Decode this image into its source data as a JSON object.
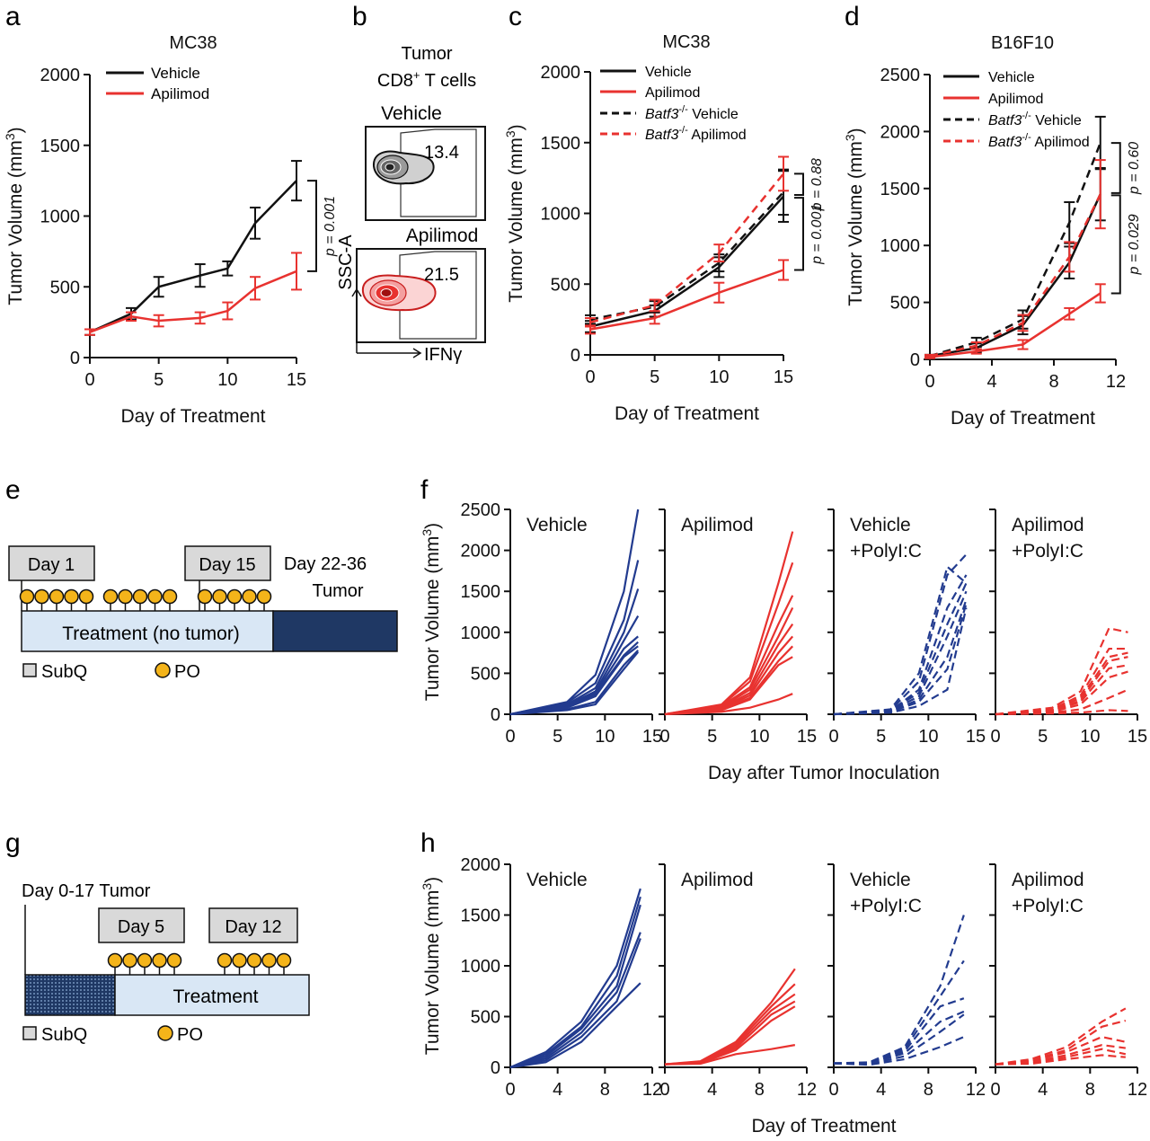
{
  "colors": {
    "black": "#111111",
    "red": "#e8322f",
    "blue": "#223b8f",
    "gold": "#f4b41a",
    "light_blue": "#d9e7f5",
    "navy": "#1f3864",
    "grey_box": "#d9d9d9"
  },
  "panel_letters": {
    "a": "a",
    "b": "b",
    "c": "c",
    "d": "d",
    "e": "e",
    "f": "f",
    "g": "g",
    "h": "h"
  },
  "labels": {
    "tumor_volume_mm3": "Tumor Volume (mm",
    "sup3": "3",
    "close_paren": ")",
    "day_of_treatment": "Day of Treatment",
    "day_after_inoculation": "Day after Tumor Inoculation",
    "vehicle": "Vehicle",
    "apilimod": "Apilimod",
    "batf3": "Batf3",
    "ko_sup": "-/-",
    "vehicle_space": " Vehicle",
    "apilimod_space": " Apilimod"
  },
  "panel_b": {
    "title_line1": "Tumor",
    "title_line2_a": "CD8",
    "title_line2_sup": "+",
    "title_line2_b": " T cells",
    "top_label": "Vehicle",
    "top_pct": "13.4",
    "bottom_label": "Apilimod",
    "bottom_pct": "21.5",
    "y_axis": "SSC-A",
    "x_axis": "IFNγ"
  },
  "panel_e": {
    "day1": "Day 1",
    "day15": "Day 15",
    "tumor_period_line1": "Day 22-36",
    "tumor_period_line2": "Tumor",
    "treatment": "Treatment (no tumor)",
    "subq": "SubQ",
    "po": "PO"
  },
  "panel_g": {
    "tumor_period": "Day 0-17 Tumor",
    "day5": "Day 5",
    "day12": "Day 12",
    "treatment": "Treatment",
    "subq": "SubQ",
    "po": "PO"
  },
  "chart_data": [
    {
      "id": "a",
      "type": "line",
      "title": "MC38",
      "xlabel": "Day of Treatment",
      "ylabel": "Tumor Volume (mm3)",
      "xlim": [
        0,
        15
      ],
      "ylim": [
        0,
        2000
      ],
      "xticks": [
        0,
        5,
        10,
        15
      ],
      "yticks": [
        0,
        500,
        1000,
        1500,
        2000
      ],
      "series": [
        {
          "name": "Vehicle",
          "color": "#111111",
          "dash": false,
          "x": [
            0,
            3,
            5,
            8,
            10,
            12,
            15
          ],
          "y": [
            180,
            310,
            500,
            580,
            630,
            950,
            1250
          ],
          "err": [
            20,
            40,
            70,
            80,
            50,
            110,
            140
          ]
        },
        {
          "name": "Apilimod",
          "color": "#e8322f",
          "dash": false,
          "x": [
            0,
            3,
            5,
            8,
            10,
            12,
            15
          ],
          "y": [
            180,
            290,
            260,
            280,
            330,
            490,
            610
          ],
          "err": [
            20,
            30,
            40,
            40,
            60,
            80,
            130
          ]
        }
      ],
      "annotations": [
        "p = 0.001"
      ]
    },
    {
      "id": "c",
      "type": "line",
      "title": "MC38",
      "xlabel": "Day of Treatment",
      "ylabel": "Tumor Volume (mm3)",
      "xlim": [
        0,
        15
      ],
      "ylim": [
        0,
        2000
      ],
      "xticks": [
        0,
        5,
        10,
        15
      ],
      "yticks": [
        0,
        500,
        1000,
        1500,
        2000
      ],
      "series": [
        {
          "name": "Vehicle",
          "color": "#111111",
          "dash": false,
          "x": [
            0,
            5,
            10,
            15
          ],
          "y": [
            200,
            310,
            620,
            1120
          ],
          "err": [
            40,
            40,
            70,
            180
          ]
        },
        {
          "name": "Apilimod",
          "color": "#e8322f",
          "dash": false,
          "x": [
            0,
            5,
            10,
            15
          ],
          "y": [
            180,
            260,
            440,
            600
          ],
          "err": [
            30,
            40,
            70,
            70
          ]
        },
        {
          "name": "Batf3-/- Vehicle",
          "color": "#111111",
          "dash": true,
          "x": [
            0,
            5,
            10,
            15
          ],
          "y": [
            250,
            340,
            650,
            1150
          ],
          "err": [
            30,
            40,
            60,
            160
          ]
        },
        {
          "name": "Batf3-/- Apilimod",
          "color": "#e8322f",
          "dash": true,
          "x": [
            0,
            5,
            10,
            15
          ],
          "y": [
            230,
            350,
            720,
            1280
          ],
          "err": [
            30,
            40,
            60,
            120
          ]
        }
      ],
      "annotations": [
        "p = 0.88",
        "p = 0.001"
      ]
    },
    {
      "id": "d",
      "type": "line",
      "title": "B16F10",
      "xlabel": "Day of Treatment",
      "ylabel": "Tumor Volume (mm3)",
      "xlim": [
        0,
        12
      ],
      "ylim": [
        0,
        2500
      ],
      "xticks": [
        0,
        4,
        8,
        12
      ],
      "yticks": [
        0,
        500,
        1000,
        1500,
        2000,
        2500
      ],
      "series": [
        {
          "name": "Vehicle",
          "color": "#111111",
          "dash": false,
          "x": [
            0,
            3,
            6,
            9,
            11
          ],
          "y": [
            30,
            100,
            300,
            850,
            1450
          ],
          "err": [
            10,
            40,
            80,
            140,
            230
          ]
        },
        {
          "name": "Apilimod",
          "color": "#e8322f",
          "dash": false,
          "x": [
            0,
            3,
            6,
            9,
            11
          ],
          "y": [
            20,
            70,
            130,
            400,
            580
          ],
          "err": [
            10,
            20,
            40,
            50,
            80
          ]
        },
        {
          "name": "Batf3-/- Vehicle",
          "color": "#111111",
          "dash": true,
          "x": [
            0,
            3,
            6,
            9,
            11
          ],
          "y": [
            30,
            150,
            350,
            1200,
            1900
          ],
          "err": [
            10,
            40,
            80,
            180,
            230
          ]
        },
        {
          "name": "Batf3-/- Apilimod",
          "color": "#e8322f",
          "dash": true,
          "x": [
            0,
            3,
            6,
            9,
            11
          ],
          "y": [
            30,
            120,
            320,
            900,
            1450
          ],
          "err": [
            10,
            30,
            70,
            130,
            300
          ]
        }
      ],
      "annotations": [
        "p = 0.60",
        "p = 0.029"
      ]
    },
    {
      "id": "f",
      "type": "line",
      "group_ylabel": "Tumor Volume (mm3)",
      "group_xlabel": "Day after Tumor Inoculation",
      "xlim": [
        0,
        15
      ],
      "ylim": [
        0,
        2500
      ],
      "xticks": [
        0,
        5,
        10,
        15
      ],
      "yticks": [
        0,
        500,
        1000,
        1500,
        2000,
        2500
      ],
      "panels": [
        {
          "title": [
            "Vehicle"
          ],
          "color": "#223b8f",
          "dash": false,
          "x": [
            0,
            6,
            9,
            12,
            13.5
          ],
          "series": [
            [
              0,
              150,
              480,
              1500,
              2500
            ],
            [
              0,
              140,
              380,
              1150,
              1880
            ],
            [
              0,
              120,
              320,
              1000,
              1530
            ],
            [
              0,
              110,
              280,
              900,
              1200
            ],
            [
              0,
              100,
              260,
              800,
              950
            ],
            [
              0,
              90,
              240,
              720,
              880
            ],
            [
              0,
              80,
              220,
              700,
              830
            ],
            [
              0,
              60,
              150,
              600,
              780
            ],
            [
              0,
              50,
              120,
              550,
              760
            ]
          ]
        },
        {
          "title": [
            "Apilimod"
          ],
          "color": "#e8322f",
          "dash": false,
          "x": [
            0,
            6,
            9,
            12,
            13.5
          ],
          "series": [
            [
              0,
              120,
              450,
              1600,
              2230
            ],
            [
              0,
              110,
              400,
              1350,
              1850
            ],
            [
              0,
              100,
              330,
              1100,
              1450
            ],
            [
              0,
              90,
              300,
              950,
              1300
            ],
            [
              0,
              80,
              260,
              850,
              1100
            ],
            [
              0,
              70,
              230,
              750,
              950
            ],
            [
              0,
              60,
              200,
              650,
              830
            ],
            [
              0,
              50,
              180,
              600,
              700
            ],
            [
              0,
              30,
              80,
              180,
              250
            ]
          ]
        },
        {
          "title": [
            "Vehicle",
            "+PolyI:C"
          ],
          "color": "#223b8f",
          "dash": true,
          "x": [
            0,
            6,
            9,
            12,
            14
          ],
          "series": [
            [
              0,
              60,
              500,
              1800,
              1600
            ],
            [
              0,
              50,
              400,
              1700,
              1950
            ],
            [
              0,
              40,
              300,
              1300,
              1700
            ],
            [
              0,
              50,
              260,
              1100,
              1600
            ],
            [
              0,
              40,
              220,
              950,
              1500
            ],
            [
              0,
              30,
              180,
              700,
              1400
            ],
            [
              0,
              30,
              150,
              550,
              1350
            ],
            [
              0,
              20,
              100,
              300,
              1300
            ]
          ]
        },
        {
          "title": [
            "Apilimod",
            "+PolyI:C"
          ],
          "color": "#e8322f",
          "dash": true,
          "x": [
            0,
            6,
            9,
            12,
            14
          ],
          "series": [
            [
              0,
              80,
              280,
              1050,
              1000
            ],
            [
              0,
              60,
              230,
              800,
              800
            ],
            [
              0,
              50,
              200,
              700,
              750
            ],
            [
              0,
              40,
              170,
              650,
              700
            ],
            [
              0,
              40,
              150,
              560,
              600
            ],
            [
              0,
              30,
              120,
              450,
              520
            ],
            [
              0,
              20,
              60,
              200,
              300
            ],
            [
              0,
              10,
              20,
              50,
              40
            ]
          ]
        }
      ]
    },
    {
      "id": "h",
      "type": "line",
      "group_ylabel": "Tumor Volume (mm3)",
      "group_xlabel": "Day of Treatment",
      "xlim": [
        0,
        12
      ],
      "ylim": [
        0,
        2000
      ],
      "xticks": [
        0,
        4,
        8,
        12
      ],
      "yticks": [
        0,
        500,
        1000,
        1500,
        2000
      ],
      "panels": [
        {
          "title": [
            "Vehicle"
          ],
          "color": "#223b8f",
          "dash": false,
          "x": [
            0,
            3,
            6,
            9,
            11
          ],
          "series": [
            [
              0,
              150,
              450,
              1000,
              1760
            ],
            [
              0,
              130,
              400,
              900,
              1680
            ],
            [
              0,
              110,
              380,
              800,
              1600
            ],
            [
              0,
              90,
              340,
              740,
              1330
            ],
            [
              0,
              70,
              300,
              650,
              1270
            ],
            [
              0,
              50,
              250,
              600,
              830
            ]
          ]
        },
        {
          "title": [
            "Apilimod"
          ],
          "color": "#e8322f",
          "dash": false,
          "x": [
            0,
            3,
            6,
            9,
            11
          ],
          "series": [
            [
              30,
              60,
              250,
              640,
              970
            ],
            [
              30,
              55,
              230,
              600,
              820
            ],
            [
              30,
              50,
              210,
              560,
              720
            ],
            [
              30,
              45,
              190,
              520,
              650
            ],
            [
              30,
              40,
              170,
              460,
              600
            ],
            [
              30,
              35,
              130,
              180,
              220
            ]
          ]
        },
        {
          "title": [
            "Vehicle",
            "+PolyI:C"
          ],
          "color": "#223b8f",
          "dash": true,
          "x": [
            0,
            3,
            6,
            9,
            11
          ],
          "series": [
            [
              40,
              50,
              200,
              800,
              1500
            ],
            [
              40,
              45,
              180,
              700,
              1050
            ],
            [
              40,
              40,
              160,
              600,
              680
            ],
            [
              40,
              35,
              140,
              450,
              550
            ],
            [
              40,
              30,
              110,
              350,
              520
            ],
            [
              40,
              25,
              80,
              200,
              300
            ]
          ]
        },
        {
          "title": [
            "Apilimod",
            "+PolyI:C"
          ],
          "color": "#e8322f",
          "dash": true,
          "x": [
            0,
            3,
            6,
            9,
            11
          ],
          "series": [
            [
              30,
              80,
              200,
              450,
              580
            ],
            [
              30,
              70,
              170,
              400,
              460
            ],
            [
              30,
              60,
              150,
              300,
              250
            ],
            [
              30,
              50,
              120,
              220,
              190
            ],
            [
              30,
              40,
              100,
              180,
              130
            ],
            [
              30,
              35,
              80,
              120,
              100
            ]
          ]
        }
      ]
    }
  ]
}
